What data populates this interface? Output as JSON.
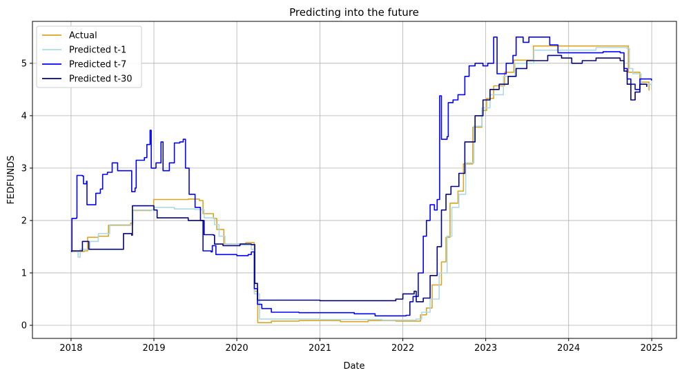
{
  "chart_data": {
    "type": "line",
    "title": "Predicting into the future",
    "xlabel": "Date",
    "ylabel": "FEDFUNDS",
    "x_ticks": [
      "2018",
      "2019",
      "2020",
      "2021",
      "2022",
      "2023",
      "2024",
      "2025"
    ],
    "y_ticks": [
      "0",
      "1",
      "2",
      "3",
      "4",
      "5"
    ],
    "xlim": [
      "2017-07-15",
      "2025-04-20"
    ],
    "ylim": [
      -0.25,
      5.8
    ],
    "grid": true,
    "legend_position": "top-left",
    "series": [
      {
        "name": "Actual",
        "color": "#DAA520",
        "points": [
          [
            "2018-01-01",
            1.41
          ],
          [
            "2018-03-01",
            1.42
          ],
          [
            "2018-03-15",
            1.68
          ],
          [
            "2018-05-01",
            1.7
          ],
          [
            "2018-06-15",
            1.91
          ],
          [
            "2018-09-20",
            1.95
          ],
          [
            "2018-09-30",
            2.19
          ],
          [
            "2018-12-20",
            2.2
          ],
          [
            "2018-12-31",
            2.4
          ],
          [
            "2019-06-01",
            2.41
          ],
          [
            "2019-07-20",
            2.38
          ],
          [
            "2019-08-05",
            2.13
          ],
          [
            "2019-09-20",
            2.04
          ],
          [
            "2019-10-05",
            1.83
          ],
          [
            "2019-11-05",
            1.55
          ],
          [
            "2020-01-15",
            1.55
          ],
          [
            "2020-02-10",
            1.58
          ],
          [
            "2020-03-05",
            1.58
          ],
          [
            "2020-03-18",
            0.65
          ],
          [
            "2020-04-02",
            0.05
          ],
          [
            "2020-06-01",
            0.08
          ],
          [
            "2020-10-01",
            0.09
          ],
          [
            "2021-01-01",
            0.09
          ],
          [
            "2021-04-01",
            0.07
          ],
          [
            "2021-08-01",
            0.09
          ],
          [
            "2021-12-01",
            0.08
          ],
          [
            "2022-02-28",
            0.08
          ],
          [
            "2022-03-20",
            0.2
          ],
          [
            "2022-04-15",
            0.33
          ],
          [
            "2022-05-10",
            0.77
          ],
          [
            "2022-06-20",
            1.21
          ],
          [
            "2022-07-10",
            1.68
          ],
          [
            "2022-07-28",
            2.33
          ],
          [
            "2022-09-01",
            2.56
          ],
          [
            "2022-09-25",
            3.08
          ],
          [
            "2022-11-05",
            3.78
          ],
          [
            "2022-12-15",
            4.1
          ],
          [
            "2023-01-05",
            4.33
          ],
          [
            "2023-02-05",
            4.57
          ],
          [
            "2023-03-25",
            4.83
          ],
          [
            "2023-05-05",
            5.06
          ],
          [
            "2023-07-30",
            5.33
          ],
          [
            "2024-09-18",
            5.33
          ],
          [
            "2024-09-20",
            4.83
          ],
          [
            "2024-11-10",
            4.64
          ],
          [
            "2024-12-20",
            4.48
          ]
        ]
      },
      {
        "name": "Predicted t-1",
        "color": "#ADD8E6",
        "points": [
          [
            "2018-01-01",
            1.42
          ],
          [
            "2018-01-25",
            1.4
          ],
          [
            "2018-02-01",
            1.3
          ],
          [
            "2018-02-10",
            1.45
          ],
          [
            "2018-03-25",
            1.6
          ],
          [
            "2018-05-01",
            1.75
          ],
          [
            "2018-06-20",
            1.92
          ],
          [
            "2018-09-30",
            2.2
          ],
          [
            "2018-12-30",
            2.25
          ],
          [
            "2019-04-01",
            2.22
          ],
          [
            "2019-07-01",
            2.21
          ],
          [
            "2019-08-10",
            2.05
          ],
          [
            "2019-09-25",
            1.92
          ],
          [
            "2019-10-15",
            1.7
          ],
          [
            "2019-11-10",
            1.55
          ],
          [
            "2020-01-20",
            1.53
          ],
          [
            "2020-03-05",
            1.45
          ],
          [
            "2020-03-18",
            0.6
          ],
          [
            "2020-04-10",
            0.12
          ],
          [
            "2021-01-01",
            0.11
          ],
          [
            "2021-10-01",
            0.1
          ],
          [
            "2022-02-28",
            0.12
          ],
          [
            "2022-03-25",
            0.25
          ],
          [
            "2022-05-01",
            0.5
          ],
          [
            "2022-06-10",
            1.0
          ],
          [
            "2022-07-15",
            1.7
          ],
          [
            "2022-08-05",
            2.25
          ],
          [
            "2022-09-05",
            2.5
          ],
          [
            "2022-10-05",
            3.1
          ],
          [
            "2022-11-10",
            3.8
          ],
          [
            "2022-12-15",
            4.15
          ],
          [
            "2023-01-20",
            4.4
          ],
          [
            "2023-03-20",
            4.75
          ],
          [
            "2023-05-10",
            5.0
          ],
          [
            "2023-08-01",
            5.25
          ],
          [
            "2024-01-01",
            5.25
          ],
          [
            "2024-05-01",
            5.3
          ],
          [
            "2024-09-15",
            5.28
          ],
          [
            "2024-09-25",
            4.9
          ],
          [
            "2024-10-10",
            4.8
          ],
          [
            "2024-11-15",
            4.6
          ],
          [
            "2024-12-31",
            4.5
          ]
        ]
      },
      {
        "name": "Predicted t-7",
        "color": "#0000FF",
        "points": [
          [
            "2018-01-01",
            1.41
          ],
          [
            "2018-01-05",
            2.04
          ],
          [
            "2018-01-25",
            2.05
          ],
          [
            "2018-01-27",
            2.86
          ],
          [
            "2018-02-20",
            2.85
          ],
          [
            "2018-02-25",
            2.7
          ],
          [
            "2018-03-10",
            2.75
          ],
          [
            "2018-03-12",
            2.3
          ],
          [
            "2018-04-10",
            2.3
          ],
          [
            "2018-04-20",
            2.52
          ],
          [
            "2018-05-10",
            2.6
          ],
          [
            "2018-05-20",
            2.88
          ],
          [
            "2018-06-10",
            2.92
          ],
          [
            "2018-07-01",
            3.1
          ],
          [
            "2018-07-25",
            2.95
          ],
          [
            "2018-09-10",
            2.95
          ],
          [
            "2018-09-25",
            2.55
          ],
          [
            "2018-10-10",
            2.62
          ],
          [
            "2018-10-15",
            3.15
          ],
          [
            "2018-11-20",
            3.2
          ],
          [
            "2018-12-01",
            3.45
          ],
          [
            "2018-12-15",
            3.72
          ],
          [
            "2018-12-20",
            3.0
          ],
          [
            "2019-01-10",
            3.1
          ],
          [
            "2019-02-01",
            3.5
          ],
          [
            "2019-02-10",
            2.95
          ],
          [
            "2019-03-10",
            3.1
          ],
          [
            "2019-04-01",
            3.48
          ],
          [
            "2019-04-25",
            3.5
          ],
          [
            "2019-05-10",
            3.55
          ],
          [
            "2019-05-20",
            3.0
          ],
          [
            "2019-06-05",
            2.5
          ],
          [
            "2019-07-01",
            2.25
          ],
          [
            "2019-07-25",
            2.0
          ],
          [
            "2019-08-05",
            1.42
          ],
          [
            "2019-09-10",
            1.4
          ],
          [
            "2019-09-15",
            1.52
          ],
          [
            "2019-10-01",
            1.35
          ],
          [
            "2020-01-01",
            1.33
          ],
          [
            "2020-01-30",
            1.33
          ],
          [
            "2020-02-20",
            1.35
          ],
          [
            "2020-03-05",
            1.4
          ],
          [
            "2020-03-18",
            0.7
          ],
          [
            "2020-04-01",
            0.4
          ],
          [
            "2020-04-20",
            0.32
          ],
          [
            "2020-06-01",
            0.25
          ],
          [
            "2020-10-01",
            0.24
          ],
          [
            "2021-03-01",
            0.24
          ],
          [
            "2021-06-01",
            0.22
          ],
          [
            "2021-09-01",
            0.18
          ],
          [
            "2021-12-01",
            0.18
          ],
          [
            "2022-01-15",
            0.19
          ],
          [
            "2022-02-01",
            0.45
          ],
          [
            "2022-02-15",
            0.55
          ],
          [
            "2022-03-10",
            1.0
          ],
          [
            "2022-04-01",
            1.7
          ],
          [
            "2022-04-15",
            2.0
          ],
          [
            "2022-05-01",
            2.3
          ],
          [
            "2022-05-20",
            2.2
          ],
          [
            "2022-06-01",
            2.4
          ],
          [
            "2022-06-12",
            4.38
          ],
          [
            "2022-06-20",
            3.55
          ],
          [
            "2022-07-15",
            3.6
          ],
          [
            "2022-07-20",
            4.25
          ],
          [
            "2022-08-10",
            4.3
          ],
          [
            "2022-09-01",
            4.4
          ],
          [
            "2022-10-01",
            4.75
          ],
          [
            "2022-10-20",
            4.95
          ],
          [
            "2022-11-15",
            5.0
          ],
          [
            "2022-12-20",
            4.95
          ],
          [
            "2023-01-10",
            5.0
          ],
          [
            "2023-02-05",
            5.5
          ],
          [
            "2023-02-20",
            4.8
          ],
          [
            "2023-04-01",
            5.0
          ],
          [
            "2023-05-01",
            5.15
          ],
          [
            "2023-05-15",
            5.5
          ],
          [
            "2023-06-15",
            5.4
          ],
          [
            "2023-07-10",
            5.5
          ],
          [
            "2023-10-10",
            5.35
          ],
          [
            "2023-11-15",
            5.2
          ],
          [
            "2024-02-01",
            5.2
          ],
          [
            "2024-06-01",
            5.22
          ],
          [
            "2024-08-15",
            5.2
          ],
          [
            "2024-09-01",
            4.9
          ],
          [
            "2024-09-15",
            4.7
          ],
          [
            "2024-10-01",
            4.6
          ],
          [
            "2024-10-20",
            4.5
          ],
          [
            "2024-11-10",
            4.7
          ],
          [
            "2024-12-31",
            4.67
          ]
        ]
      },
      {
        "name": "Predicted t-30",
        "color": "#000080",
        "points": [
          [
            "2018-01-01",
            1.42
          ],
          [
            "2018-02-10",
            1.42
          ],
          [
            "2018-02-20",
            1.6
          ],
          [
            "2018-03-15",
            1.6
          ],
          [
            "2018-03-20",
            1.45
          ],
          [
            "2018-06-15",
            1.45
          ],
          [
            "2018-08-10",
            1.45
          ],
          [
            "2018-08-20",
            1.75
          ],
          [
            "2018-09-25",
            1.72
          ],
          [
            "2018-09-28",
            2.28
          ],
          [
            "2018-12-25",
            2.28
          ],
          [
            "2019-01-01",
            2.2
          ],
          [
            "2019-01-15",
            2.05
          ],
          [
            "2019-06-01",
            2.0
          ],
          [
            "2019-08-01",
            2.0
          ],
          [
            "2019-08-10",
            1.73
          ],
          [
            "2019-09-20",
            1.72
          ],
          [
            "2019-09-25",
            1.55
          ],
          [
            "2019-11-01",
            1.52
          ],
          [
            "2020-01-15",
            1.55
          ],
          [
            "2020-03-05",
            1.54
          ],
          [
            "2020-03-20",
            0.8
          ],
          [
            "2020-04-01",
            0.48
          ],
          [
            "2021-01-01",
            0.47
          ],
          [
            "2021-06-01",
            0.47
          ],
          [
            "2021-12-01",
            0.5
          ],
          [
            "2022-01-01",
            0.6
          ],
          [
            "2022-02-20",
            0.65
          ],
          [
            "2022-03-01",
            0.45
          ],
          [
            "2022-04-01",
            0.52
          ],
          [
            "2022-05-01",
            0.95
          ],
          [
            "2022-06-01",
            1.5
          ],
          [
            "2022-06-20",
            2.2
          ],
          [
            "2022-07-10",
            2.5
          ],
          [
            "2022-08-01",
            2.65
          ],
          [
            "2022-09-05",
            2.9
          ],
          [
            "2022-10-01",
            3.5
          ],
          [
            "2022-11-15",
            4.0
          ],
          [
            "2022-12-20",
            4.3
          ],
          [
            "2023-01-20",
            4.5
          ],
          [
            "2023-03-01",
            4.6
          ],
          [
            "2023-04-10",
            4.75
          ],
          [
            "2023-05-15",
            4.9
          ],
          [
            "2023-07-01",
            5.05
          ],
          [
            "2023-10-01",
            5.15
          ],
          [
            "2023-12-01",
            5.1
          ],
          [
            "2024-01-15",
            5.0
          ],
          [
            "2024-03-01",
            5.05
          ],
          [
            "2024-05-01",
            5.1
          ],
          [
            "2024-08-15",
            5.05
          ],
          [
            "2024-09-01",
            4.85
          ],
          [
            "2024-09-15",
            4.6
          ],
          [
            "2024-10-01",
            4.3
          ],
          [
            "2024-10-20",
            4.45
          ],
          [
            "2024-11-10",
            4.6
          ],
          [
            "2024-12-10",
            4.55
          ]
        ]
      }
    ]
  }
}
